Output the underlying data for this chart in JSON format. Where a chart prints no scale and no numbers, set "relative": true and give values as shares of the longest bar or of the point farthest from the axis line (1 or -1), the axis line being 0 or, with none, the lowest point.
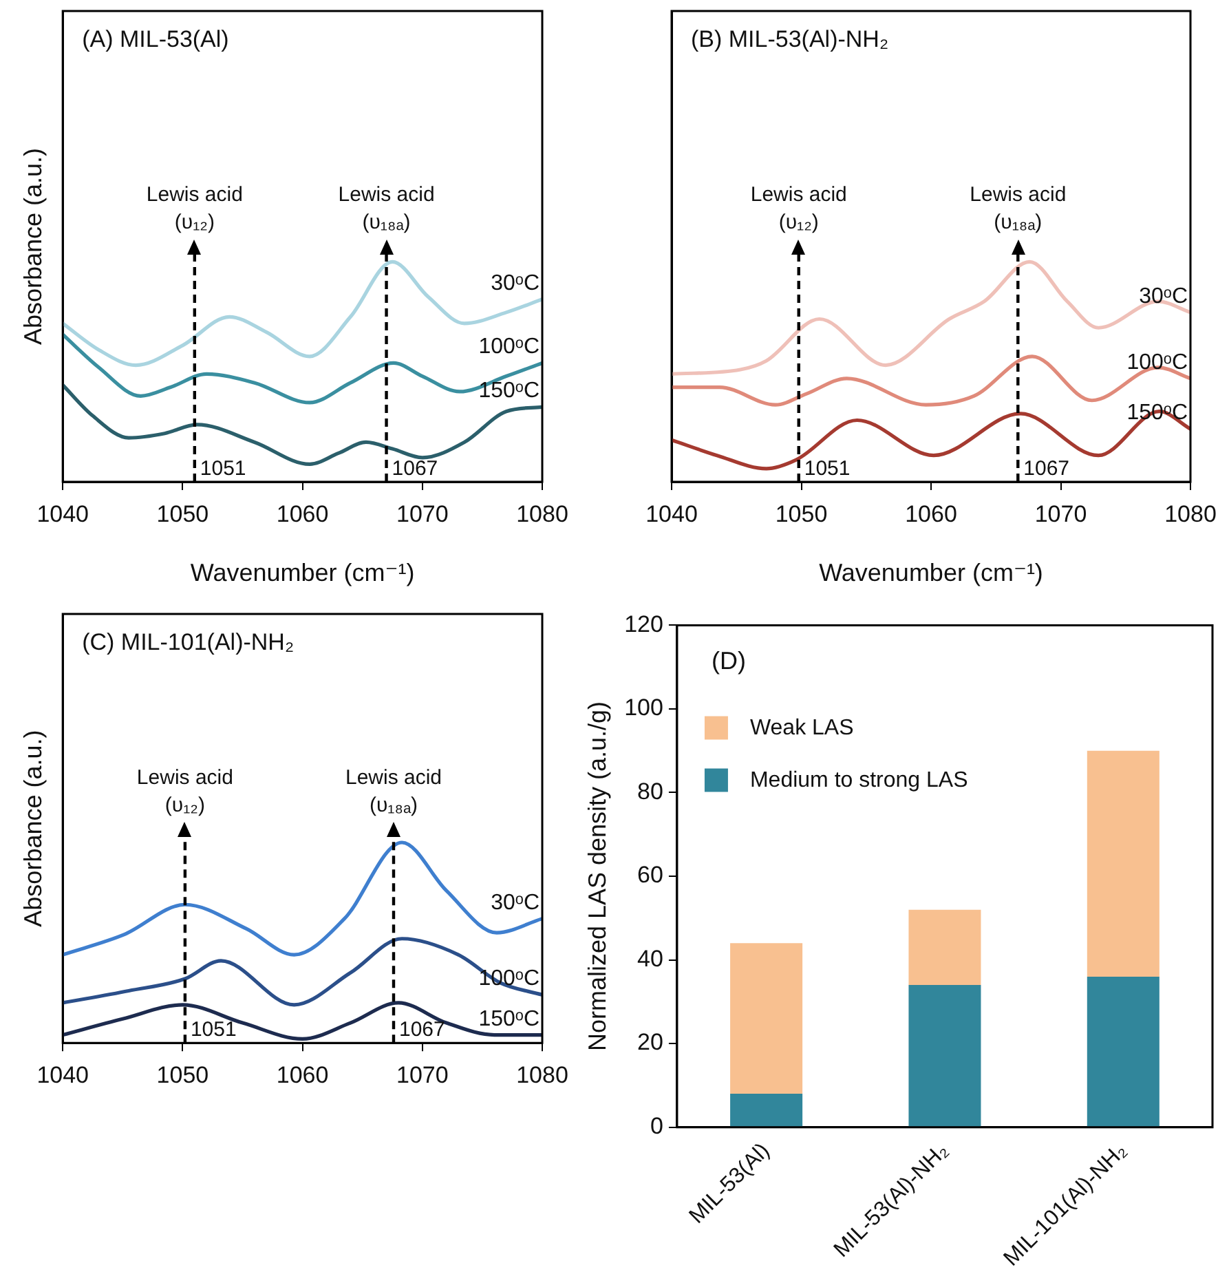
{
  "chart_data": [
    {
      "type": "line",
      "title": "(A) MIL-53(Al)",
      "xlabel": "Wavenumber (cm⁻¹)",
      "ylabel": "Absorbance (a.u.)",
      "relative": true,
      "xlim": [
        1040,
        1080
      ],
      "xticks": [
        1040,
        1050,
        1060,
        1070,
        1080
      ],
      "tick_labels": "x",
      "legend": false,
      "marker": "none",
      "line_style": "solid",
      "series": [
        {
          "name": "30ᵒC",
          "color": "#a9d4e0",
          "x": [
            1040,
            1043,
            1046.1,
            1050,
            1053.9,
            1057,
            1060.6,
            1064,
            1067.5,
            1070.5,
            1073.5,
            1077,
            1080
          ],
          "values": [
            0.72,
            0.6,
            0.53,
            0.62,
            0.75,
            0.68,
            0.57,
            0.75,
            1.0,
            0.84,
            0.72,
            0.77,
            0.83
          ]
        },
        {
          "name": "100ᵒC",
          "color": "#3a8fa0",
          "x": [
            1040,
            1043,
            1046.5,
            1049,
            1052,
            1056,
            1060.6,
            1064,
            1067.6,
            1070,
            1073.1,
            1077,
            1080
          ],
          "values": [
            0.67,
            0.52,
            0.39,
            0.43,
            0.49,
            0.45,
            0.36,
            0.45,
            0.54,
            0.48,
            0.41,
            0.48,
            0.54
          ]
        },
        {
          "name": "150ᵒC",
          "color": "#2b5f6b",
          "x": [
            1040,
            1042.5,
            1045.5,
            1048.5,
            1051.2,
            1056,
            1060.6,
            1063,
            1065.3,
            1067.5,
            1070,
            1073.5,
            1077,
            1080
          ],
          "values": [
            0.44,
            0.3,
            0.2,
            0.22,
            0.26,
            0.18,
            0.08,
            0.13,
            0.18,
            0.15,
            0.11,
            0.18,
            0.32,
            0.34
          ]
        }
      ],
      "ref_lines": [
        {
          "axis": "x",
          "value": 1051,
          "label": "Lewis acid\n(υ₁₂)",
          "line_style": "dashed"
        },
        {
          "axis": "x",
          "value": 1067,
          "label": "Lewis acid\n(υ₁₈ₐ)",
          "line_style": "dashed"
        }
      ],
      "annotations": [
        {
          "text": "1051",
          "x": 1051,
          "y": 0
        },
        {
          "text": "1067",
          "x": 1067,
          "y": 0
        }
      ]
    },
    {
      "type": "line",
      "title": "(B) MIL-53(Al)-NH₂",
      "xlabel": "Wavenumber (cm⁻¹)",
      "relative": true,
      "xlim": [
        1040,
        1080
      ],
      "xticks": [
        1040,
        1050,
        1060,
        1070,
        1080
      ],
      "tick_labels": "x",
      "legend": false,
      "marker": "none",
      "line_style": "solid",
      "series": [
        {
          "name": "30ᵒC",
          "color": "#efc0b8",
          "x": [
            1040,
            1045.3,
            1047.3,
            1051.4,
            1056.5,
            1061.4,
            1064.1,
            1067.6,
            1070.5,
            1072.9,
            1077.5,
            1080
          ],
          "values": [
            0.49,
            0.51,
            0.55,
            0.74,
            0.53,
            0.74,
            0.82,
            1.0,
            0.82,
            0.7,
            0.82,
            0.77
          ]
        },
        {
          "name": "100ᵒC",
          "color": "#e08a7a",
          "x": [
            1040,
            1043.7,
            1048,
            1050.4,
            1053.5,
            1059.6,
            1063.3,
            1067.8,
            1072.4,
            1077.5,
            1080
          ],
          "values": [
            0.43,
            0.43,
            0.35,
            0.4,
            0.47,
            0.35,
            0.39,
            0.57,
            0.37,
            0.52,
            0.47
          ]
        },
        {
          "name": "150ᵒC",
          "color": "#a53a30",
          "x": [
            1040,
            1043.5,
            1047.3,
            1049.6,
            1054.3,
            1060.2,
            1066.9,
            1072.9,
            1077.6,
            1080
          ],
          "values": [
            0.19,
            0.12,
            0.06,
            0.1,
            0.28,
            0.12,
            0.31,
            0.12,
            0.32,
            0.24
          ]
        }
      ],
      "ref_lines": [
        {
          "axis": "x",
          "value": 1049.8,
          "label": "Lewis acid\n(υ₁₂)",
          "line_style": "dashed"
        },
        {
          "axis": "x",
          "value": 1066.7,
          "label": "Lewis acid\n(υ₁₈ₐ)",
          "line_style": "dashed"
        }
      ],
      "annotations": [
        {
          "text": "1051",
          "x": 1049.8,
          "y": 0
        },
        {
          "text": "1067",
          "x": 1066.7,
          "y": 0
        }
      ]
    },
    {
      "type": "line",
      "title": "(C) MIL-101(Al)-NH₂",
      "ylabel": "Absorbance (a.u.)",
      "relative": true,
      "xlim": [
        1040,
        1080
      ],
      "xticks": [
        1040,
        1050,
        1060,
        1070,
        1080
      ],
      "tick_labels": "x",
      "legend": false,
      "marker": "none",
      "line_style": "solid",
      "series": [
        {
          "name": "30ᵒC",
          "color": "#3f7fcf",
          "x": [
            1040,
            1045.1,
            1050.2,
            1055.3,
            1059.3,
            1063.5,
            1068.3,
            1072,
            1076.2,
            1080
          ],
          "values": [
            0.44,
            0.54,
            0.69,
            0.57,
            0.44,
            0.62,
            1.0,
            0.76,
            0.55,
            0.62
          ]
        },
        {
          "name": "100ᵒC",
          "color": "#2b4f8a",
          "x": [
            1040,
            1045.5,
            1050.2,
            1053.2,
            1059.3,
            1064,
            1068.3,
            1073,
            1076.5,
            1080
          ],
          "values": [
            0.2,
            0.26,
            0.32,
            0.41,
            0.19,
            0.35,
            0.52,
            0.44,
            0.3,
            0.24
          ]
        },
        {
          "name": "150ᵒC",
          "color": "#1d2b4f",
          "x": [
            1040,
            1045,
            1050,
            1055,
            1060,
            1064,
            1068,
            1072,
            1076,
            1080
          ],
          "values": [
            0.04,
            0.12,
            0.19,
            0.1,
            0.02,
            0.1,
            0.2,
            0.1,
            0.04,
            0.04
          ]
        }
      ],
      "ref_lines": [
        {
          "axis": "x",
          "value": 1050.2,
          "label": "Lewis acid\n(υ₁₂)",
          "line_style": "dashed"
        },
        {
          "axis": "x",
          "value": 1067.6,
          "label": "Lewis acid\n(υ₁₈ₐ)",
          "line_style": "dashed"
        }
      ],
      "annotations": [
        {
          "text": "1051",
          "x": 1050.2,
          "y": 0
        },
        {
          "text": "1067",
          "x": 1067.6,
          "y": 0
        }
      ]
    },
    {
      "type": "bar",
      "stacked": true,
      "title": "(D)",
      "ylabel": "Normalized LAS density (a.u./g)",
      "categories": [
        "MIL-53(Al)",
        "MIL-53(Al)-NH₂",
        "MIL-101(Al)-NH₂"
      ],
      "ylim": [
        0,
        120
      ],
      "yticks": [
        0,
        20,
        40,
        60,
        80,
        100,
        120
      ],
      "legend": "top left",
      "series": [
        {
          "name": "Medium to strong LAS",
          "color": "#31869b",
          "values": [
            8,
            34,
            36
          ]
        },
        {
          "name": "Weak LAS",
          "color": "#f8c090",
          "values": [
            36,
            18,
            54
          ]
        }
      ]
    }
  ]
}
